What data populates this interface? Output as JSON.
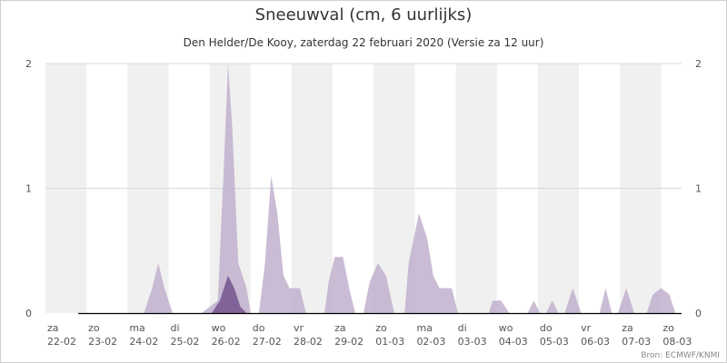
{
  "title": "Sneeuwval (cm, 6 uurlijks)",
  "subtitle": "Den Helder/De Kooy, zaterdag 22 februari 2020 (Versie za 12 uur)",
  "credit": "Bron: ECMWF/KNMI",
  "colors": {
    "band": "#f0f0f0",
    "grid": "#d8d8d8",
    "ensemble_fill": "#bfb0cc",
    "median_fill": "#7d5e96",
    "baseline": "#000000"
  },
  "chart_data": {
    "type": "area",
    "title": "Sneeuwval (cm, 6 uurlijks)",
    "subtitle": "Den Helder/De Kooy, zaterdag 22 februari 2020 (Versie za 12 uur)",
    "xlabel": "",
    "ylabel": "",
    "ylim": [
      0,
      2
    ],
    "y_ticks": [
      "0",
      "1",
      "2"
    ],
    "right_axis_ticks": [
      "0",
      "1",
      "2"
    ],
    "x_range_days": [
      0,
      15.5
    ],
    "grid": true,
    "legend": "none",
    "x_ticks": [
      {
        "day": "za",
        "date": "22-02"
      },
      {
        "day": "zo",
        "date": "23-02"
      },
      {
        "day": "ma",
        "date": "24-02"
      },
      {
        "day": "di",
        "date": "25-02"
      },
      {
        "day": "wo",
        "date": "26-02"
      },
      {
        "day": "do",
        "date": "27-02"
      },
      {
        "day": "vr",
        "date": "28-02"
      },
      {
        "day": "za",
        "date": "29-02"
      },
      {
        "day": "zo",
        "date": "01-03"
      },
      {
        "day": "ma",
        "date": "02-03"
      },
      {
        "day": "di",
        "date": "03-03"
      },
      {
        "day": "wo",
        "date": "04-03"
      },
      {
        "day": "do",
        "date": "05-03"
      },
      {
        "day": "vr",
        "date": "06-03"
      },
      {
        "day": "za",
        "date": "07-03"
      },
      {
        "day": "zo",
        "date": "08-03"
      }
    ],
    "series": [
      {
        "name": "",
        "role": "ensemble-spread",
        "points": [
          [
            0.8,
            0
          ],
          [
            2.4,
            0
          ],
          [
            2.6,
            0.2
          ],
          [
            2.75,
            0.4
          ],
          [
            2.9,
            0.2
          ],
          [
            3.1,
            0
          ],
          [
            3.8,
            0
          ],
          [
            4.2,
            0.1
          ],
          [
            4.35,
            1.2
          ],
          [
            4.45,
            2.0
          ],
          [
            4.55,
            1.5
          ],
          [
            4.7,
            0.4
          ],
          [
            4.9,
            0.2
          ],
          [
            5.0,
            0
          ],
          [
            5.2,
            0
          ],
          [
            5.35,
            0.4
          ],
          [
            5.5,
            1.1
          ],
          [
            5.65,
            0.8
          ],
          [
            5.8,
            0.3
          ],
          [
            5.95,
            0.2
          ],
          [
            6.2,
            0.2
          ],
          [
            6.35,
            0
          ],
          [
            6.8,
            0
          ],
          [
            6.9,
            0.25
          ],
          [
            7.05,
            0.45
          ],
          [
            7.25,
            0.45
          ],
          [
            7.4,
            0.2
          ],
          [
            7.55,
            0
          ],
          [
            7.75,
            0
          ],
          [
            7.9,
            0.25
          ],
          [
            8.1,
            0.4
          ],
          [
            8.3,
            0.3
          ],
          [
            8.5,
            0
          ],
          [
            8.75,
            0
          ],
          [
            8.85,
            0.4
          ],
          [
            9.1,
            0.8
          ],
          [
            9.3,
            0.6
          ],
          [
            9.45,
            0.3
          ],
          [
            9.6,
            0.2
          ],
          [
            9.9,
            0.2
          ],
          [
            10.05,
            0
          ],
          [
            10.8,
            0
          ],
          [
            10.9,
            0.1
          ],
          [
            11.1,
            0.1
          ],
          [
            11.3,
            0
          ],
          [
            11.75,
            0
          ],
          [
            11.9,
            0.1
          ],
          [
            12.05,
            0
          ],
          [
            12.2,
            0
          ],
          [
            12.35,
            0.1
          ],
          [
            12.5,
            0
          ],
          [
            12.65,
            0
          ],
          [
            12.85,
            0.2
          ],
          [
            13.05,
            0
          ],
          [
            13.5,
            0
          ],
          [
            13.65,
            0.2
          ],
          [
            13.8,
            0
          ],
          [
            13.95,
            0
          ],
          [
            14.15,
            0.2
          ],
          [
            14.35,
            0
          ],
          [
            14.65,
            0
          ],
          [
            14.8,
            0.15
          ],
          [
            15.0,
            0.2
          ],
          [
            15.2,
            0.15
          ],
          [
            15.35,
            0
          ]
        ]
      },
      {
        "name": "",
        "role": "median",
        "points": [
          [
            4.05,
            0
          ],
          [
            4.25,
            0.1
          ],
          [
            4.45,
            0.3
          ],
          [
            4.6,
            0.2
          ],
          [
            4.75,
            0.05
          ],
          [
            4.9,
            0
          ]
        ]
      }
    ]
  }
}
